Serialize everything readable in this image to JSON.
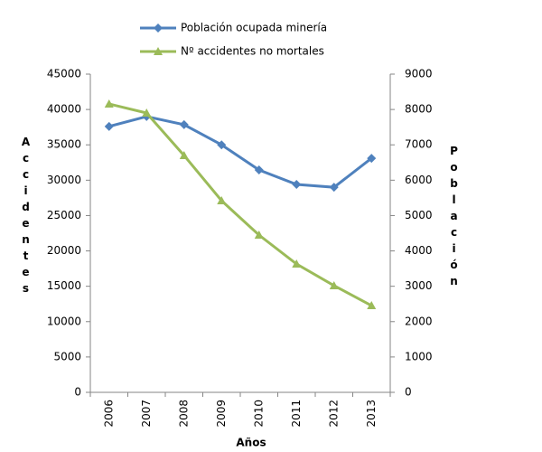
{
  "chart_data": {
    "type": "line",
    "categories": [
      "2006",
      "2007",
      "2008",
      "2009",
      "2010",
      "2011",
      "2012",
      "2013"
    ],
    "series": [
      {
        "name": "Población ocupada minería",
        "color": "#4f81bd",
        "marker": "diamond",
        "axis": "y2",
        "values": [
          7520,
          7800,
          7570,
          7000,
          6290,
          5880,
          5800,
          6620
        ]
      },
      {
        "name": "Nº accidentes no mortales",
        "color": "#9bbb59",
        "marker": "triangle",
        "values": [
          40780,
          39500,
          33500,
          27100,
          22240,
          18150,
          15090,
          12270
        ]
      }
    ],
    "xlabel": "Años",
    "ylabel": "Accidentes",
    "y2label": "Población",
    "ylim": [
      0,
      45000
    ],
    "yticks": [
      0,
      5000,
      10000,
      15000,
      20000,
      25000,
      30000,
      35000,
      40000,
      45000
    ],
    "y2lim": [
      0,
      9000
    ],
    "y2ticks": [
      0,
      1000,
      2000,
      3000,
      4000,
      5000,
      6000,
      7000,
      8000,
      9000
    ],
    "grid": false,
    "legend": "top"
  }
}
